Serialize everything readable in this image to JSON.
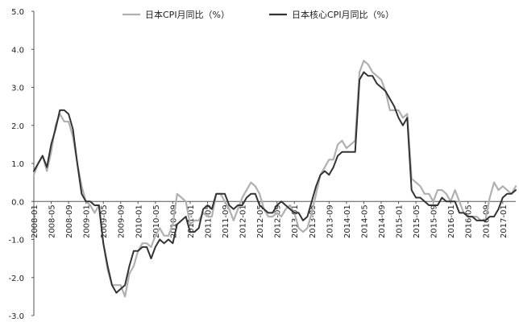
{
  "chart_data": {
    "type": "line",
    "title": "",
    "xlabel": "",
    "ylabel": "",
    "ylim": [
      -3.0,
      5.0
    ],
    "yticks": [
      "5.0",
      "4.0",
      "3.0",
      "2.0",
      "1.0",
      "0.0",
      "-1.0",
      "-2.0",
      "-3.0"
    ],
    "ytick_values": [
      5,
      4,
      3,
      2,
      1,
      0,
      -1,
      -2,
      -3
    ],
    "x_start": "2008-01",
    "x_end": "2017-04",
    "xticks": [
      "2008-01",
      "2008-05",
      "2008-09",
      "2009-01",
      "2009-05",
      "2009-09",
      "2010-01",
      "2010-05",
      "2010-09",
      "2011-01",
      "2011-05",
      "2011-09",
      "2012-01",
      "2012-05",
      "2012-09",
      "2013-01",
      "2013-05",
      "2013-09",
      "2014-01",
      "2014-05",
      "2014-09",
      "2015-01",
      "2015-05",
      "2015-09",
      "2016-01",
      "2016-05",
      "2016-09",
      "2017-01"
    ],
    "legend_position": "top",
    "grid": false,
    "series": [
      {
        "name": "日本CPI月同比（%）",
        "color": "#b0b0b0",
        "points": [
          [
            "2008-01",
            0.7
          ],
          [
            "2008-02",
            1.0
          ],
          [
            "2008-03",
            1.2
          ],
          [
            "2008-04",
            0.8
          ],
          [
            "2008-05",
            1.3
          ],
          [
            "2008-06",
            2.0
          ],
          [
            "2008-07",
            2.3
          ],
          [
            "2008-08",
            2.1
          ],
          [
            "2008-09",
            2.1
          ],
          [
            "2008-10",
            1.7
          ],
          [
            "2008-11",
            1.0
          ],
          [
            "2008-12",
            0.4
          ],
          [
            "2009-01",
            0.0
          ],
          [
            "2009-02",
            -0.1
          ],
          [
            "2009-03",
            -0.3
          ],
          [
            "2009-04",
            -0.1
          ],
          [
            "2009-05",
            -1.1
          ],
          [
            "2009-06",
            -1.8
          ],
          [
            "2009-07",
            -2.2
          ],
          [
            "2009-08",
            -2.2
          ],
          [
            "2009-09",
            -2.2
          ],
          [
            "2009-10",
            -2.5
          ],
          [
            "2009-11",
            -1.9
          ],
          [
            "2009-12",
            -1.7
          ],
          [
            "2010-01",
            -1.3
          ],
          [
            "2010-02",
            -1.1
          ],
          [
            "2010-03",
            -1.1
          ],
          [
            "2010-04",
            -1.2
          ],
          [
            "2010-05",
            -0.9
          ],
          [
            "2010-06",
            -0.7
          ],
          [
            "2010-07",
            -0.9
          ],
          [
            "2010-08",
            -0.9
          ],
          [
            "2010-09",
            -0.6
          ],
          [
            "2010-10",
            0.2
          ],
          [
            "2010-11",
            0.1
          ],
          [
            "2010-12",
            0.0
          ],
          [
            "2011-01",
            -0.6
          ],
          [
            "2011-02",
            -0.5
          ],
          [
            "2011-03",
            -0.5
          ],
          [
            "2011-04",
            -0.3
          ],
          [
            "2011-05",
            -0.4
          ],
          [
            "2011-06",
            -0.4
          ],
          [
            "2011-07",
            0.2
          ],
          [
            "2011-08",
            0.2
          ],
          [
            "2011-09",
            0.0
          ],
          [
            "2011-10",
            -0.2
          ],
          [
            "2011-11",
            -0.5
          ],
          [
            "2011-12",
            -0.2
          ],
          [
            "2012-01",
            0.1
          ],
          [
            "2012-02",
            0.3
          ],
          [
            "2012-03",
            0.5
          ],
          [
            "2012-04",
            0.4
          ],
          [
            "2012-05",
            0.2
          ],
          [
            "2012-06",
            -0.2
          ],
          [
            "2012-07",
            -0.4
          ],
          [
            "2012-08",
            -0.4
          ],
          [
            "2012-09",
            -0.3
          ],
          [
            "2012-10",
            -0.4
          ],
          [
            "2012-11",
            -0.2
          ],
          [
            "2012-12",
            -0.1
          ],
          [
            "2013-01",
            -0.3
          ],
          [
            "2013-02",
            -0.7
          ],
          [
            "2013-03",
            -0.8
          ],
          [
            "2013-04",
            -0.7
          ],
          [
            "2013-05",
            -0.3
          ],
          [
            "2013-06",
            0.2
          ],
          [
            "2013-07",
            0.7
          ],
          [
            "2013-08",
            0.9
          ],
          [
            "2013-09",
            1.1
          ],
          [
            "2013-10",
            1.1
          ],
          [
            "2013-11",
            1.5
          ],
          [
            "2013-12",
            1.6
          ],
          [
            "2014-01",
            1.4
          ],
          [
            "2014-02",
            1.5
          ],
          [
            "2014-03",
            1.6
          ],
          [
            "2014-04",
            3.4
          ],
          [
            "2014-05",
            3.7
          ],
          [
            "2014-06",
            3.6
          ],
          [
            "2014-07",
            3.4
          ],
          [
            "2014-08",
            3.3
          ],
          [
            "2014-09",
            3.2
          ],
          [
            "2014-10",
            2.9
          ],
          [
            "2014-11",
            2.4
          ],
          [
            "2014-12",
            2.4
          ],
          [
            "2015-01",
            2.4
          ],
          [
            "2015-02",
            2.2
          ],
          [
            "2015-03",
            2.3
          ],
          [
            "2015-04",
            0.6
          ],
          [
            "2015-05",
            0.5
          ],
          [
            "2015-06",
            0.4
          ],
          [
            "2015-07",
            0.2
          ],
          [
            "2015-08",
            0.2
          ],
          [
            "2015-09",
            0.0
          ],
          [
            "2015-10",
            0.3
          ],
          [
            "2015-11",
            0.3
          ],
          [
            "2015-12",
            0.2
          ],
          [
            "2016-01",
            0.0
          ],
          [
            "2016-02",
            0.3
          ],
          [
            "2016-03",
            0.0
          ],
          [
            "2016-04",
            -0.3
          ],
          [
            "2016-05",
            -0.4
          ],
          [
            "2016-06",
            -0.4
          ],
          [
            "2016-07",
            -0.4
          ],
          [
            "2016-08",
            -0.5
          ],
          [
            "2016-09",
            -0.5
          ],
          [
            "2016-10",
            0.1
          ],
          [
            "2016-11",
            0.5
          ],
          [
            "2016-12",
            0.3
          ],
          [
            "2017-01",
            0.4
          ],
          [
            "2017-02",
            0.3
          ],
          [
            "2017-03",
            0.2
          ],
          [
            "2017-04",
            0.4
          ]
        ]
      },
      {
        "name": "日本核心CPI月同比（%）",
        "color": "#333333",
        "points": [
          [
            "2008-01",
            0.8
          ],
          [
            "2008-02",
            1.0
          ],
          [
            "2008-03",
            1.2
          ],
          [
            "2008-04",
            0.9
          ],
          [
            "2008-05",
            1.5
          ],
          [
            "2008-06",
            1.9
          ],
          [
            "2008-07",
            2.4
          ],
          [
            "2008-08",
            2.4
          ],
          [
            "2008-09",
            2.3
          ],
          [
            "2008-10",
            1.9
          ],
          [
            "2008-11",
            1.0
          ],
          [
            "2008-12",
            0.2
          ],
          [
            "2009-01",
            0.0
          ],
          [
            "2009-02",
            0.0
          ],
          [
            "2009-03",
            -0.1
          ],
          [
            "2009-04",
            -0.1
          ],
          [
            "2009-05",
            -1.1
          ],
          [
            "2009-06",
            -1.7
          ],
          [
            "2009-07",
            -2.2
          ],
          [
            "2009-08",
            -2.4
          ],
          [
            "2009-09",
            -2.3
          ],
          [
            "2009-10",
            -2.2
          ],
          [
            "2009-11",
            -1.7
          ],
          [
            "2009-12",
            -1.3
          ],
          [
            "2010-01",
            -1.3
          ],
          [
            "2010-02",
            -1.2
          ],
          [
            "2010-03",
            -1.2
          ],
          [
            "2010-04",
            -1.5
          ],
          [
            "2010-05",
            -1.2
          ],
          [
            "2010-06",
            -1.0
          ],
          [
            "2010-07",
            -1.1
          ],
          [
            "2010-08",
            -1.0
          ],
          [
            "2010-09",
            -1.1
          ],
          [
            "2010-10",
            -0.6
          ],
          [
            "2010-11",
            -0.5
          ],
          [
            "2010-12",
            -0.4
          ],
          [
            "2011-01",
            -0.8
          ],
          [
            "2011-02",
            -0.8
          ],
          [
            "2011-03",
            -0.7
          ],
          [
            "2011-04",
            -0.2
          ],
          [
            "2011-05",
            -0.1
          ],
          [
            "2011-06",
            -0.2
          ],
          [
            "2011-07",
            0.2
          ],
          [
            "2011-08",
            0.2
          ],
          [
            "2011-09",
            0.2
          ],
          [
            "2011-10",
            -0.1
          ],
          [
            "2011-11",
            -0.2
          ],
          [
            "2011-12",
            -0.1
          ],
          [
            "2012-01",
            -0.1
          ],
          [
            "2012-02",
            0.1
          ],
          [
            "2012-03",
            0.2
          ],
          [
            "2012-04",
            0.2
          ],
          [
            "2012-05",
            -0.1
          ],
          [
            "2012-06",
            -0.2
          ],
          [
            "2012-07",
            -0.3
          ],
          [
            "2012-08",
            -0.3
          ],
          [
            "2012-09",
            -0.1
          ],
          [
            "2012-10",
            0.0
          ],
          [
            "2012-11",
            -0.1
          ],
          [
            "2012-12",
            -0.2
          ],
          [
            "2013-01",
            -0.3
          ],
          [
            "2013-02",
            -0.3
          ],
          [
            "2013-03",
            -0.5
          ],
          [
            "2013-04",
            -0.4
          ],
          [
            "2013-05",
            0.0
          ],
          [
            "2013-06",
            0.4
          ],
          [
            "2013-07",
            0.7
          ],
          [
            "2013-08",
            0.8
          ],
          [
            "2013-09",
            0.7
          ],
          [
            "2013-10",
            0.9
          ],
          [
            "2013-11",
            1.2
          ],
          [
            "2013-12",
            1.3
          ],
          [
            "2014-01",
            1.3
          ],
          [
            "2014-02",
            1.3
          ],
          [
            "2014-03",
            1.3
          ],
          [
            "2014-04",
            3.2
          ],
          [
            "2014-05",
            3.4
          ],
          [
            "2014-06",
            3.3
          ],
          [
            "2014-07",
            3.3
          ],
          [
            "2014-08",
            3.1
          ],
          [
            "2014-09",
            3.0
          ],
          [
            "2014-10",
            2.9
          ],
          [
            "2014-11",
            2.7
          ],
          [
            "2014-12",
            2.5
          ],
          [
            "2015-01",
            2.2
          ],
          [
            "2015-02",
            2.0
          ],
          [
            "2015-03",
            2.2
          ],
          [
            "2015-04",
            0.3
          ],
          [
            "2015-05",
            0.1
          ],
          [
            "2015-06",
            0.1
          ],
          [
            "2015-07",
            0.0
          ],
          [
            "2015-08",
            -0.1
          ],
          [
            "2015-09",
            -0.1
          ],
          [
            "2015-10",
            -0.1
          ],
          [
            "2015-11",
            0.1
          ],
          [
            "2015-12",
            0.0
          ],
          [
            "2016-01",
            0.0
          ],
          [
            "2016-02",
            0.0
          ],
          [
            "2016-03",
            -0.3
          ],
          [
            "2016-04",
            -0.3
          ],
          [
            "2016-05",
            -0.4
          ],
          [
            "2016-06",
            -0.4
          ],
          [
            "2016-07",
            -0.5
          ],
          [
            "2016-08",
            -0.5
          ],
          [
            "2016-09",
            -0.5
          ],
          [
            "2016-10",
            -0.4
          ],
          [
            "2016-11",
            -0.4
          ],
          [
            "2016-12",
            -0.2
          ],
          [
            "2017-01",
            0.1
          ],
          [
            "2017-02",
            0.2
          ],
          [
            "2017-03",
            0.2
          ],
          [
            "2017-04",
            0.3
          ]
        ]
      }
    ]
  }
}
